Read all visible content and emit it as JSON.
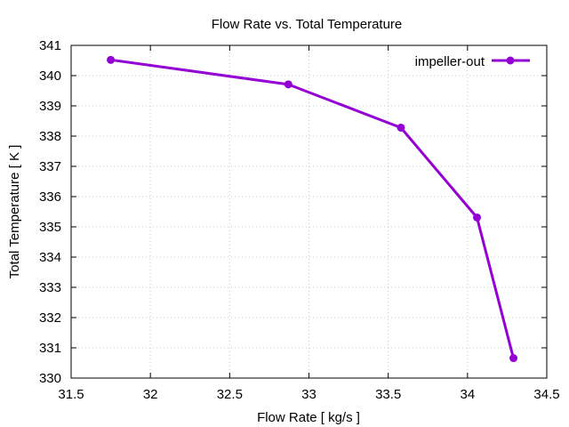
{
  "chart_data": {
    "type": "line",
    "title": "Flow Rate vs. Total Temperature",
    "xlabel": "Flow Rate [ kg/s ]",
    "ylabel": "Total Temperature [ K ]",
    "xlim": [
      31.5,
      34.5
    ],
    "ylim": [
      330,
      341
    ],
    "xticks": [
      31.5,
      32,
      32.5,
      33,
      33.5,
      34,
      34.5
    ],
    "xtick_labels": [
      "31.5",
      "32",
      "32.5",
      "33",
      "33.5",
      "34",
      "34.5"
    ],
    "yticks": [
      330,
      331,
      332,
      333,
      334,
      335,
      336,
      337,
      338,
      339,
      340,
      341
    ],
    "ytick_labels": [
      "330",
      "331",
      "332",
      "333",
      "334",
      "335",
      "336",
      "337",
      "338",
      "339",
      "340",
      "341"
    ],
    "grid": true,
    "legend_position": "top-right",
    "series": [
      {
        "name": "impeller-out",
        "color": "#9400d3",
        "marker": "circle",
        "x": [
          31.75,
          32.87,
          33.58,
          34.06,
          34.29
        ],
        "y": [
          340.52,
          339.71,
          338.28,
          335.31,
          330.66
        ]
      }
    ]
  }
}
